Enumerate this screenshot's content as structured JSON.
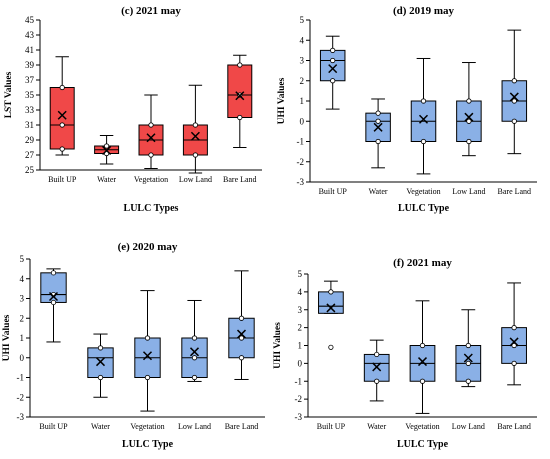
{
  "chart_data": [
    {
      "type": "box",
      "title": "(c) 2021 may",
      "xlabel": "LULC Types",
      "ylabel": "LST Values",
      "ylim": [
        25,
        45
      ],
      "yticks": [
        25,
        27,
        29,
        31,
        33,
        35,
        37,
        39,
        41,
        43,
        45
      ],
      "color": "#f04848",
      "categories": [
        "Built UP",
        "Water",
        "Vegetation",
        "Low Land",
        "Bare Land"
      ],
      "boxes": [
        {
          "min": 27.0,
          "q1": 27.8,
          "median": 31.0,
          "q3": 36.0,
          "max": 40.1,
          "mean": 32.3,
          "points": [
            27.8,
            31.0,
            36.0
          ]
        },
        {
          "min": 25.8,
          "q1": 27.2,
          "median": 27.7,
          "q3": 28.2,
          "max": 29.6,
          "mean": 27.6,
          "points": [
            27.2,
            28.2
          ]
        },
        {
          "min": 25.2,
          "q1": 27.0,
          "median": 29.0,
          "q3": 31.0,
          "max": 35.0,
          "mean": 29.3,
          "points": [
            27.0,
            31.0
          ]
        },
        {
          "min": 24.6,
          "q1": 27.0,
          "median": 29.0,
          "q3": 31.0,
          "max": 36.3,
          "mean": 29.5,
          "points": [
            27.0,
            31.0
          ]
        },
        {
          "min": 28.0,
          "q1": 32.0,
          "median": 35.0,
          "q3": 39.0,
          "max": 40.3,
          "mean": 34.9,
          "points": [
            32.0,
            35.0,
            39.0
          ]
        }
      ]
    },
    {
      "type": "box",
      "title": "(d) 2019 may",
      "xlabel": "LULC Type",
      "ylabel": "UHI Values",
      "ylim": [
        -3,
        5
      ],
      "yticks": [
        -3,
        -2,
        -1,
        0,
        1,
        2,
        3,
        4,
        5
      ],
      "color": "#8ab0e6",
      "categories": [
        "Built UP",
        "Water",
        "Vegetation",
        "Low Land",
        "Bare Land"
      ],
      "boxes": [
        {
          "min": 0.6,
          "q1": 2.0,
          "median": 3.0,
          "q3": 3.5,
          "max": 4.2,
          "mean": 2.6,
          "points": [
            2.0,
            3.0,
            3.5
          ]
        },
        {
          "min": -2.3,
          "q1": -1.0,
          "median": 0.0,
          "q3": 0.4,
          "max": 1.1,
          "mean": -0.3,
          "points": [
            -1.0,
            0.0,
            0.4
          ]
        },
        {
          "min": -2.6,
          "q1": -1.0,
          "median": 0.0,
          "q3": 1.0,
          "max": 3.1,
          "mean": 0.1,
          "points": [
            -1.0,
            1.0
          ]
        },
        {
          "min": -1.7,
          "q1": -1.0,
          "median": 0.0,
          "q3": 1.0,
          "max": 2.9,
          "mean": 0.2,
          "points": [
            -1.0,
            0.0,
            1.0
          ]
        },
        {
          "min": -1.6,
          "q1": 0.0,
          "median": 1.0,
          "q3": 2.0,
          "max": 4.5,
          "mean": 1.2,
          "points": [
            0.0,
            1.0,
            2.0
          ]
        }
      ]
    },
    {
      "type": "box",
      "title": "(e) 2020 may",
      "xlabel": "LULC Type",
      "ylabel": "UHI Values",
      "ylim": [
        -3,
        5
      ],
      "yticks": [
        -3,
        -2,
        -1,
        0,
        1,
        2,
        3,
        4,
        5
      ],
      "color": "#8ab0e6",
      "categories": [
        "Built UP",
        "Water",
        "Vegetation",
        "Low Land",
        "Bare Land"
      ],
      "boxes": [
        {
          "min": 0.8,
          "q1": 2.8,
          "median": 3.2,
          "q3": 4.3,
          "max": 4.5,
          "mean": 3.1,
          "points": [
            2.8,
            3.2,
            4.3
          ]
        },
        {
          "min": -2.0,
          "q1": -1.0,
          "median": 0.0,
          "q3": 0.5,
          "max": 1.2,
          "mean": -0.2,
          "points": [
            -1.0,
            0.5
          ]
        },
        {
          "min": -2.7,
          "q1": -1.0,
          "median": 0.0,
          "q3": 1.0,
          "max": 3.4,
          "mean": 0.1,
          "points": [
            -1.0,
            1.0
          ]
        },
        {
          "min": -1.2,
          "q1": -1.0,
          "median": 0.0,
          "q3": 1.0,
          "max": 2.9,
          "mean": 0.3,
          "points": [
            -1.0,
            0.0,
            1.0
          ]
        },
        {
          "min": -1.1,
          "q1": 0.0,
          "median": 1.0,
          "q3": 2.0,
          "max": 4.4,
          "mean": 1.2,
          "points": [
            0.0,
            1.0,
            2.0
          ]
        }
      ]
    },
    {
      "type": "box",
      "title": "(f) 2021 may",
      "xlabel": "LULC Type",
      "ylabel": "UHI Values",
      "ylim": [
        -3,
        5
      ],
      "yticks": [
        -3,
        -2,
        -1,
        0,
        1,
        2,
        3,
        4,
        5
      ],
      "color": "#8ab0e6",
      "categories": [
        "Built UP",
        "Water",
        "Vegetation",
        "Low Land",
        "Bare Land"
      ],
      "boxes": [
        {
          "min": 2.8,
          "q1": 2.8,
          "median": 3.2,
          "q3": 4.0,
          "max": 4.6,
          "mean": 3.1,
          "points": [
            4.0
          ],
          "outliers": [
            0.9
          ]
        },
        {
          "min": -2.1,
          "q1": -1.0,
          "median": 0.0,
          "q3": 0.5,
          "max": 1.3,
          "mean": -0.2,
          "points": [
            -1.0,
            0.5
          ]
        },
        {
          "min": -2.8,
          "q1": -1.0,
          "median": 0.0,
          "q3": 1.0,
          "max": 3.5,
          "mean": 0.1,
          "points": [
            -1.0,
            1.0
          ]
        },
        {
          "min": -1.3,
          "q1": -1.0,
          "median": 0.0,
          "q3": 1.0,
          "max": 3.0,
          "mean": 0.3,
          "points": [
            -1.0,
            0.0,
            1.0
          ]
        },
        {
          "min": -1.2,
          "q1": 0.0,
          "median": 1.0,
          "q3": 2.0,
          "max": 4.5,
          "mean": 1.2,
          "points": [
            0.0,
            1.0,
            2.0
          ]
        }
      ]
    }
  ]
}
